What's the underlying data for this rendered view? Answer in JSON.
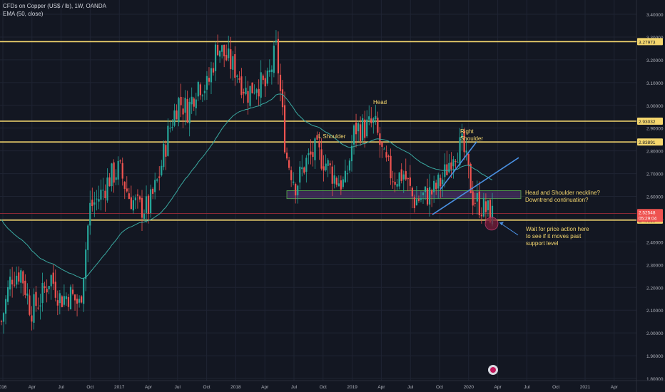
{
  "header": {
    "symbol_line": "CFDs on Copper (US$ / lb), 1W, OANDA",
    "indicator_line": "EMA (50, close)"
  },
  "colors": {
    "background": "#131722",
    "grid": "#1f2433",
    "up_candle": "#26a69a",
    "down_candle": "#ef5350",
    "ema": "#3aa8a0",
    "level_line": "#f5d76e",
    "trendline": "#4a90e2",
    "neckline_box": "#5b3a7a",
    "annotation_text": "#f5d76e",
    "price_tag": "#ef5350",
    "axis_text": "#b2b5be"
  },
  "chart_data": {
    "type": "candlestick",
    "title": "CFDs on Copper (US$ / lb), 1W, OANDA",
    "indicator": "EMA (50, close)",
    "x_tick_labels": [
      "016",
      "Apr",
      "Jul",
      "Oct",
      "2017",
      "Apr",
      "Jul",
      "Oct",
      "2018",
      "Apr",
      "Jul",
      "Oct",
      "2019",
      "Apr",
      "Jul",
      "Oct",
      "2020",
      "Apr",
      "Jul",
      "Oct",
      "2021",
      "Apr"
    ],
    "y_tick_labels": [
      "3.40000",
      "3.30000",
      "3.20000",
      "3.10000",
      "3.00000",
      "2.90000",
      "2.80000",
      "2.70000",
      "2.60000",
      "2.50000",
      "2.40000",
      "2.30000",
      "2.20000",
      "2.10000",
      "2.00000",
      "1.90000",
      "1.80000"
    ],
    "ylim": [
      1.8,
      3.42
    ],
    "price_levels": [
      {
        "value": 3.27973,
        "label": "3.27973"
      },
      {
        "value": 2.93032,
        "label": "2.93032"
      },
      {
        "value": 2.83891,
        "label": "2.83891"
      },
      {
        "value": 2.49559,
        "label": "2.49559"
      }
    ],
    "current_price": {
      "value": 2.52548,
      "label": "2.52548",
      "countdown": "05:29:04"
    },
    "price_path": [
      {
        "date": "2016-01",
        "value": 2.05
      },
      {
        "date": "2016-03",
        "value": 2.25
      },
      {
        "date": "2016-04",
        "value": 2.27
      },
      {
        "date": "2016-05",
        "value": 2.1
      },
      {
        "date": "2016-06",
        "value": 2.15
      },
      {
        "date": "2016-07",
        "value": 2.25
      },
      {
        "date": "2016-08",
        "value": 2.15
      },
      {
        "date": "2016-09",
        "value": 2.17
      },
      {
        "date": "2016-10",
        "value": 2.12
      },
      {
        "date": "2016-11",
        "value": 2.55
      },
      {
        "date": "2016-12",
        "value": 2.6
      },
      {
        "date": "2017-01",
        "value": 2.68
      },
      {
        "date": "2017-02",
        "value": 2.72
      },
      {
        "date": "2017-03",
        "value": 2.6
      },
      {
        "date": "2017-04",
        "value": 2.55
      },
      {
        "date": "2017-05",
        "value": 2.55
      },
      {
        "date": "2017-06",
        "value": 2.68
      },
      {
        "date": "2017-07",
        "value": 2.88
      },
      {
        "date": "2017-08",
        "value": 3.02
      },
      {
        "date": "2017-09",
        "value": 2.98
      },
      {
        "date": "2017-10",
        "value": 3.1
      },
      {
        "date": "2017-11",
        "value": 3.08
      },
      {
        "date": "2017-12",
        "value": 3.27
      },
      {
        "date": "2018-01",
        "value": 3.2
      },
      {
        "date": "2018-02",
        "value": 3.15
      },
      {
        "date": "2018-03",
        "value": 3.05
      },
      {
        "date": "2018-04",
        "value": 3.1
      },
      {
        "date": "2018-05",
        "value": 3.08
      },
      {
        "date": "2018-06",
        "value": 3.25
      },
      {
        "date": "2018-07",
        "value": 2.78
      },
      {
        "date": "2018-08",
        "value": 2.65
      },
      {
        "date": "2018-09",
        "value": 2.75
      },
      {
        "date": "2018-10",
        "value": 2.8
      },
      {
        "date": "2018-11",
        "value": 2.75
      },
      {
        "date": "2018-12",
        "value": 2.68
      },
      {
        "date": "2019-01",
        "value": 2.65
      },
      {
        "date": "2019-02",
        "value": 2.9
      },
      {
        "date": "2019-03",
        "value": 2.9
      },
      {
        "date": "2019-04",
        "value": 2.92
      },
      {
        "date": "2019-05",
        "value": 2.75
      },
      {
        "date": "2019-06",
        "value": 2.68
      },
      {
        "date": "2019-07",
        "value": 2.7
      },
      {
        "date": "2019-08",
        "value": 2.58
      },
      {
        "date": "2019-09",
        "value": 2.6
      },
      {
        "date": "2019-10",
        "value": 2.62
      },
      {
        "date": "2019-11",
        "value": 2.68
      },
      {
        "date": "2019-12",
        "value": 2.8
      },
      {
        "date": "2020-01",
        "value": 2.82
      },
      {
        "date": "2020-01",
        "value": 2.6
      },
      {
        "date": "2020-02",
        "value": 2.55
      },
      {
        "date": "2020-02",
        "value": 2.52
      }
    ],
    "annotations": [
      {
        "text": "Head"
      },
      {
        "text": "L Shoulder"
      },
      {
        "text": "Right Shoulder"
      },
      {
        "text": "Head and Shoulder neckline? Downtrend continuation?"
      },
      {
        "text": "Wait for price action here to see if it moves past support level"
      }
    ]
  }
}
